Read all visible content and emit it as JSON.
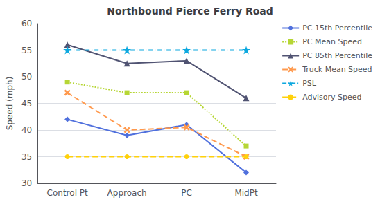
{
  "chart_data": {
    "type": "line",
    "title": "Northbound Pierce Ferry Road",
    "y_label": "Speed (mph)",
    "categories": [
      "Control Pt",
      "Approach",
      "PC",
      "MidPt"
    ],
    "series": [
      {
        "name": "PC 15th Percentile",
        "values": [
          42,
          39,
          41,
          32
        ],
        "marker": "diamond",
        "line_style": "solid"
      },
      {
        "name": "PC Mean Speed",
        "values": [
          49,
          47,
          47,
          37
        ],
        "marker": "square",
        "line_style": "dotted"
      },
      {
        "name": "PC 85th Percentile",
        "values": [
          56,
          52.5,
          53,
          46
        ],
        "marker": "triangle",
        "line_style": "solid"
      },
      {
        "name": "Truck Mean Speed",
        "values": [
          47,
          40,
          40.5,
          35
        ],
        "marker": "x",
        "line_style": "dashed"
      },
      {
        "name": "PSL",
        "values": [
          55,
          55,
          55,
          55
        ],
        "marker": "star",
        "line_style": "dashdot"
      },
      {
        "name": "Advisory Speed",
        "values": [
          35,
          35,
          35,
          35
        ],
        "marker": "circle",
        "line_style": "dashed"
      }
    ],
    "ylim": [
      30,
      60
    ],
    "yticks": [
      30,
      35,
      40,
      45,
      50,
      55,
      60
    ],
    "grid": true,
    "legend": "right"
  }
}
